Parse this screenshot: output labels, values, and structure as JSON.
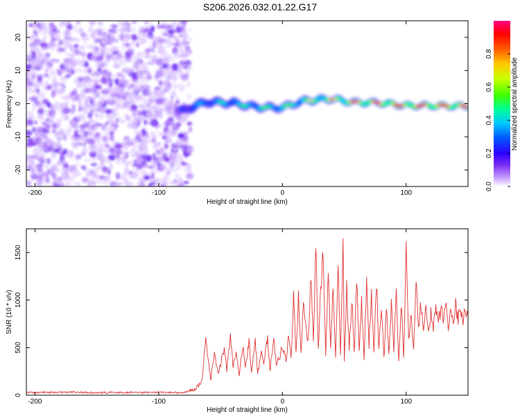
{
  "title": "S206.2026.032.01.22.G17",
  "chart_data": [
    {
      "type": "heatmap",
      "name": "spectrogram",
      "xlabel": "Height of straight line (km)",
      "ylabel": "Frequency (Hz)",
      "xlim": [
        -207,
        150
      ],
      "ylim": [
        -25,
        25
      ],
      "xticks": [
        -200,
        -100,
        0,
        100
      ],
      "xtick_labels": [
        "-200",
        "-100",
        "0",
        "100"
      ],
      "yticks": [
        -20,
        -10,
        0,
        10,
        20
      ],
      "ytick_labels": [
        "-20",
        "-10",
        "0",
        "10",
        "20"
      ],
      "noise_region_x": [
        -207,
        -75
      ],
      "signal_region_x": [
        -85,
        150
      ],
      "ridge": {
        "x": [
          -85,
          -80,
          -70,
          -60,
          -50,
          -40,
          -30,
          -20,
          -10,
          0,
          10,
          20,
          30,
          40,
          50,
          60,
          70,
          80,
          90,
          100,
          110,
          120,
          130,
          140,
          150
        ],
        "frequency": [
          -2.0,
          -2.2,
          -0.5,
          0.5,
          0.3,
          0.2,
          -0.5,
          -1.0,
          -1.2,
          -1.2,
          0.0,
          1.0,
          1.2,
          1.5,
          0.8,
          0.3,
          0.4,
          0.2,
          -0.2,
          -0.6,
          -0.6,
          -0.6,
          -0.7,
          -0.7,
          -0.8
        ],
        "amplitude": [
          0.35,
          0.3,
          0.4,
          0.45,
          0.5,
          0.5,
          0.55,
          0.6,
          0.6,
          0.6,
          0.65,
          0.7,
          0.75,
          0.8,
          0.85,
          0.9,
          0.9,
          0.9,
          0.95,
          0.95,
          0.97,
          0.97,
          0.98,
          0.98,
          0.98
        ]
      },
      "colorbar": {
        "label": "Normalized spectral amplitude",
        "range": [
          0,
          1
        ],
        "ticks": [
          0.0,
          0.2,
          0.4,
          0.6,
          0.8
        ],
        "tick_labels": [
          "0.0",
          "0.2",
          "0.4",
          "0.6",
          "0.8"
        ],
        "colors": [
          "#ffffff",
          "#c9a4ff",
          "#7a2cf2",
          "#2b00ff",
          "#0060ff",
          "#00c8ff",
          "#00ff90",
          "#40ff00",
          "#c8ff00",
          "#ffc800",
          "#ff5a00",
          "#ff0000",
          "#ff0080"
        ]
      }
    },
    {
      "type": "line",
      "name": "snr",
      "xlabel": "Height of straight line (km)",
      "ylabel": "SNR (10 * v/v)",
      "xlim": [
        -207,
        150
      ],
      "ylim": [
        0,
        1750
      ],
      "xticks": [
        -200,
        -100,
        0,
        100
      ],
      "xtick_labels": [
        "-200",
        "-100",
        "0",
        "100"
      ],
      "yticks": [
        0,
        500,
        1000,
        1500
      ],
      "ytick_labels": [
        "0",
        "500",
        "1000",
        "1500"
      ],
      "color": "#e03030",
      "series": [
        {
          "name": "SNR",
          "x": [
            -207,
            -190,
            -170,
            -150,
            -130,
            -110,
            -90,
            -80,
            -75,
            -70,
            -65,
            -62,
            -58,
            -55,
            -52,
            -50,
            -47,
            -45,
            -42,
            -40,
            -37,
            -35,
            -32,
            -30,
            -27,
            -25,
            -22,
            -20,
            -17,
            -15,
            -12,
            -10,
            -7,
            -5,
            -2,
            0,
            3,
            5,
            7,
            9,
            11,
            13,
            15,
            17,
            19,
            21,
            23,
            25,
            27,
            29,
            31,
            33,
            35,
            37,
            39,
            41,
            43,
            45,
            47,
            49,
            50,
            52,
            54,
            56,
            58,
            60,
            62,
            64,
            66,
            68,
            70,
            72,
            74,
            76,
            78,
            80,
            82,
            84,
            86,
            88,
            90,
            92,
            94,
            96,
            98,
            100,
            102,
            104,
            106,
            108,
            110,
            112,
            114,
            116,
            118,
            120,
            122,
            124,
            126,
            128,
            130,
            132,
            134,
            136,
            138,
            140,
            142,
            144,
            146,
            148,
            150
          ],
          "y": [
            30,
            28,
            32,
            25,
            30,
            28,
            30,
            26,
            45,
            70,
            150,
            590,
            170,
            450,
            230,
            320,
            520,
            260,
            640,
            310,
            460,
            210,
            520,
            300,
            560,
            250,
            590,
            230,
            470,
            340,
            610,
            260,
            630,
            320,
            410,
            520,
            360,
            650,
            380,
            1010,
            420,
            1060,
            410,
            980,
            700,
            590,
            1250,
            600,
            1600,
            470,
            1150,
            1470,
            380,
            1300,
            500,
            1210,
            380,
            1360,
            400,
            1700,
            350,
            1120,
            470,
            1050,
            420,
            1220,
            450,
            990,
            380,
            1150,
            520,
            1070,
            430,
            1210,
            480,
            980,
            370,
            920,
            440,
            960,
            470,
            1040,
            360,
            1010,
            420,
            1500,
            560,
            900,
            480,
            1170,
            700,
            980,
            740,
            880,
            620,
            860,
            710,
            950,
            770,
            880,
            820,
            960,
            700,
            930,
            790,
            950,
            810,
            890,
            760,
            920,
            830
          ]
        }
      ]
    }
  ]
}
